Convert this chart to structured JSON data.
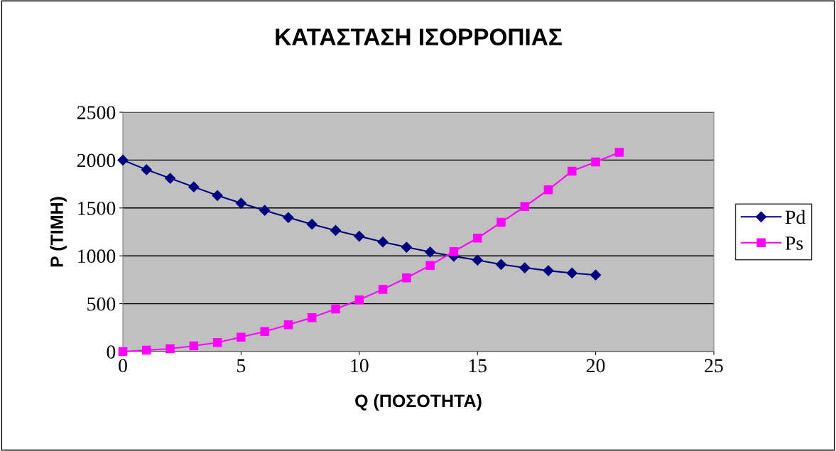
{
  "chart_data": {
    "type": "line",
    "title": "ΚΑΤΑΣΤΑΣΗ ΙΣΟΡΡΟΠΙΑΣ",
    "xlabel": "Q (ΠΟΣΟΤΗΤΑ)",
    "ylabel": "P (ΤΙΜΗ)",
    "series": [
      {
        "name": "Pd",
        "color": "#000080",
        "marker": "diamond",
        "x": [
          0,
          1,
          2,
          3,
          4,
          5,
          6,
          7,
          8,
          9,
          10,
          11,
          12,
          13,
          14,
          15,
          16,
          17,
          18,
          19,
          20
        ],
        "values": [
          2000,
          1900,
          1810,
          1720,
          1630,
          1550,
          1475,
          1400,
          1330,
          1265,
          1205,
          1145,
          1090,
          1040,
          995,
          955,
          910,
          875,
          845,
          820,
          800
        ]
      },
      {
        "name": "Ps",
        "color": "#ff00ff",
        "marker": "square",
        "x": [
          0,
          1,
          2,
          3,
          4,
          5,
          6,
          7,
          8,
          9,
          10,
          11,
          12,
          13,
          14,
          15,
          16,
          17,
          18,
          19,
          20,
          21
        ],
        "values": [
          0,
          15,
          30,
          60,
          95,
          150,
          210,
          280,
          355,
          445,
          540,
          650,
          770,
          900,
          1045,
          1185,
          1350,
          1515,
          1690,
          1885,
          1980,
          2080
        ]
      }
    ],
    "xlim": [
      0,
      25
    ],
    "xticks": [
      0,
      5,
      10,
      15,
      20,
      25
    ],
    "ylim": [
      0,
      2500
    ],
    "yticks": [
      0,
      500,
      1000,
      1500,
      2000,
      2500
    ],
    "grid": "y",
    "legend": "right",
    "line_style": "solid"
  }
}
